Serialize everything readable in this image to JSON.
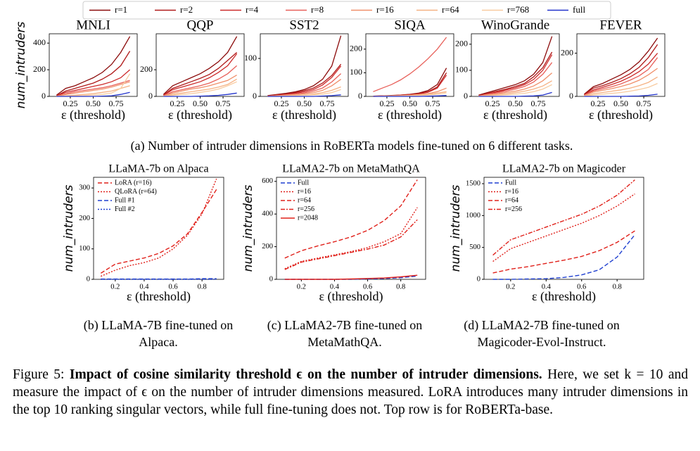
{
  "legend": {
    "entries": [
      {
        "name": "r=1",
        "color": "#8b0a0a"
      },
      {
        "name": "r=2",
        "color": "#b01a1a"
      },
      {
        "name": "r=4",
        "color": "#cc2a2a"
      },
      {
        "name": "r=8",
        "color": "#e8605a"
      },
      {
        "name": "r=16",
        "color": "#f08f6a"
      },
      {
        "name": "r=64",
        "color": "#f5b183"
      },
      {
        "name": "r=768",
        "color": "#f8cba0"
      },
      {
        "name": "full",
        "color": "#2233cc"
      }
    ]
  },
  "chart_data": [
    {
      "type": "line",
      "title": "MNLI",
      "ylabel": "num_intruders",
      "xlabel": "ε (threshold)",
      "x": [
        0.1,
        0.2,
        0.3,
        0.4,
        0.5,
        0.6,
        0.7,
        0.8,
        0.9
      ],
      "xlim": [
        0.02,
        0.98
      ],
      "xticks": [
        0.25,
        {
          "value": 0.5,
          "label": "0.50"
        },
        0.75
      ],
      "ylim": [
        0,
        470
      ],
      "yticks": [
        0,
        200,
        400
      ],
      "series": [
        {
          "values": [
            10,
            60,
            80,
            110,
            140,
            180,
            240,
            330,
            450
          ]
        },
        {
          "values": [
            5,
            40,
            60,
            80,
            100,
            130,
            170,
            230,
            340
          ]
        },
        {
          "values": [
            3,
            30,
            45,
            60,
            75,
            90,
            110,
            140,
            200
          ]
        },
        {
          "values": [
            2,
            20,
            35,
            45,
            55,
            65,
            80,
            100,
            120
          ]
        },
        {
          "values": [
            1,
            15,
            25,
            35,
            45,
            55,
            70,
            90,
            110
          ]
        },
        {
          "values": [
            0,
            5,
            10,
            15,
            20,
            30,
            40,
            60,
            80
          ]
        },
        {
          "values": [
            0,
            2,
            4,
            6,
            10,
            15,
            25,
            60,
            170
          ]
        },
        {
          "values": [
            0,
            0,
            0,
            0,
            0,
            2,
            5,
            15,
            30
          ]
        }
      ]
    },
    {
      "type": "line",
      "title": "QQP",
      "xlabel": "ε (threshold)",
      "x": [
        0.1,
        0.2,
        0.3,
        0.4,
        0.5,
        0.6,
        0.7,
        0.8,
        0.9
      ],
      "xlim": [
        0.02,
        0.98
      ],
      "xticks": [
        0.25,
        {
          "value": 0.5,
          "label": "0.50"
        },
        0.75
      ],
      "ylim": [
        0,
        470
      ],
      "yticks": [
        0,
        200
      ],
      "series": [
        {
          "values": [
            15,
            80,
            110,
            140,
            170,
            210,
            260,
            330,
            450
          ]
        },
        {
          "values": [
            10,
            60,
            85,
            110,
            135,
            165,
            210,
            270,
            330
          ]
        },
        {
          "values": [
            8,
            50,
            70,
            90,
            110,
            140,
            180,
            230,
            320
          ]
        },
        {
          "values": [
            5,
            35,
            50,
            65,
            80,
            100,
            130,
            170,
            230
          ]
        },
        {
          "values": [
            3,
            25,
            40,
            55,
            65,
            80,
            100,
            120,
            160
          ]
        },
        {
          "values": [
            2,
            15,
            25,
            35,
            45,
            55,
            70,
            90,
            130
          ]
        },
        {
          "values": [
            1,
            8,
            15,
            20,
            30,
            40,
            55,
            80,
            110
          ]
        },
        {
          "values": [
            0,
            0,
            0,
            0,
            2,
            4,
            8,
            15,
            25
          ]
        }
      ]
    },
    {
      "type": "line",
      "title": "SST2",
      "xlabel": "ε (threshold)",
      "x": [
        0.1,
        0.2,
        0.3,
        0.4,
        0.5,
        0.6,
        0.7,
        0.8,
        0.9
      ],
      "xlim": [
        0.02,
        0.98
      ],
      "xticks": [
        0.25,
        {
          "value": 0.5,
          "label": "0.50"
        },
        0.75
      ],
      "ylim": [
        0,
        165
      ],
      "yticks": [
        0,
        100
      ],
      "series": [
        {
          "values": [
            2,
            5,
            8,
            12,
            18,
            28,
            45,
            80,
            160
          ]
        },
        {
          "values": [
            1,
            4,
            6,
            10,
            15,
            22,
            35,
            55,
            85
          ]
        },
        {
          "values": [
            1,
            3,
            5,
            8,
            12,
            18,
            30,
            50,
            80
          ]
        },
        {
          "values": [
            0,
            2,
            4,
            6,
            9,
            14,
            22,
            38,
            60
          ]
        },
        {
          "values": [
            0,
            2,
            3,
            5,
            7,
            10,
            16,
            28,
            45
          ]
        },
        {
          "values": [
            0,
            1,
            2,
            3,
            4,
            6,
            10,
            16,
            25
          ]
        },
        {
          "values": [
            0,
            0,
            1,
            2,
            3,
            4,
            6,
            10,
            18
          ]
        },
        {
          "values": [
            0,
            0,
            0,
            0,
            0,
            0,
            1,
            2,
            4
          ]
        }
      ]
    },
    {
      "type": "line",
      "title": "SIQA",
      "xlabel": "ε (threshold)",
      "x": [
        0.1,
        0.2,
        0.3,
        0.4,
        0.5,
        0.6,
        0.7,
        0.8,
        0.9
      ],
      "xlim": [
        0.02,
        0.98
      ],
      "xticks": [
        0.25,
        {
          "value": 0.5,
          "label": "0.50"
        },
        0.75
      ],
      "ylim": [
        0,
        265
      ],
      "yticks": [
        0,
        100,
        200
      ],
      "series": [
        {
          "values": [
            1,
            2,
            4,
            6,
            9,
            14,
            25,
            50,
            120
          ]
        },
        {
          "values": [
            1,
            2,
            3,
            5,
            8,
            12,
            20,
            40,
            100
          ]
        },
        {
          "values": [
            0,
            2,
            3,
            5,
            7,
            10,
            18,
            35,
            90
          ]
        },
        {
          "values": [
            20,
            35,
            50,
            70,
            95,
            125,
            160,
            200,
            250
          ]
        },
        {
          "values": [
            0,
            1,
            2,
            3,
            5,
            8,
            12,
            20,
            35
          ]
        },
        {
          "values": [
            0,
            1,
            2,
            3,
            4,
            6,
            9,
            14,
            20
          ]
        },
        {
          "values": [
            0,
            0,
            1,
            2,
            3,
            4,
            6,
            9,
            15
          ]
        },
        {
          "values": [
            0,
            0,
            0,
            0,
            0,
            0,
            1,
            2,
            4
          ]
        }
      ]
    },
    {
      "type": "line",
      "title": "WinoGrande",
      "xlabel": "ε (threshold)",
      "x": [
        0.1,
        0.2,
        0.3,
        0.4,
        0.5,
        0.6,
        0.7,
        0.8,
        0.9
      ],
      "xlim": [
        0.02,
        0.98
      ],
      "xticks": [
        0.25,
        {
          "value": 0.5,
          "label": "0.50"
        },
        0.75
      ],
      "ylim": [
        0,
        240
      ],
      "yticks": [
        0,
        100,
        200
      ],
      "series": [
        {
          "values": [
            5,
            15,
            25,
            35,
            45,
            60,
            85,
            130,
            230
          ]
        },
        {
          "values": [
            3,
            12,
            20,
            28,
            38,
            50,
            75,
            110,
            170
          ]
        },
        {
          "values": [
            2,
            10,
            17,
            25,
            33,
            45,
            65,
            100,
            160
          ]
        },
        {
          "values": [
            2,
            8,
            14,
            20,
            28,
            38,
            55,
            85,
            130
          ]
        },
        {
          "values": [
            1,
            6,
            10,
            15,
            20,
            28,
            40,
            60,
            90
          ]
        },
        {
          "values": [
            1,
            4,
            7,
            10,
            14,
            20,
            28,
            40,
            60
          ]
        },
        {
          "values": [
            0,
            2,
            4,
            6,
            8,
            12,
            18,
            28,
            45
          ]
        },
        {
          "values": [
            0,
            0,
            0,
            0,
            0,
            1,
            2,
            5,
            15
          ]
        }
      ]
    },
    {
      "type": "line",
      "title": "FEVER",
      "xlabel": "ε (threshold)",
      "x": [
        0.1,
        0.2,
        0.3,
        0.4,
        0.5,
        0.6,
        0.7,
        0.8,
        0.9
      ],
      "xlim": [
        0.02,
        0.98
      ],
      "xticks": [
        0.25,
        {
          "value": 0.5,
          "label": "0.50"
        },
        0.75
      ],
      "ylim": [
        0,
        290
      ],
      "yticks": [
        0,
        200
      ],
      "series": [
        {
          "values": [
            10,
            45,
            60,
            80,
            100,
            125,
            160,
            210,
            270
          ]
        },
        {
          "values": [
            8,
            38,
            50,
            65,
            82,
            105,
            135,
            180,
            240
          ]
        },
        {
          "values": [
            6,
            30,
            42,
            55,
            70,
            90,
            115,
            150,
            200
          ]
        },
        {
          "values": [
            5,
            25,
            35,
            45,
            58,
            75,
            95,
            125,
            180
          ]
        },
        {
          "values": [
            4,
            20,
            28,
            36,
            46,
            58,
            75,
            100,
            130
          ]
        },
        {
          "values": [
            2,
            12,
            18,
            24,
            30,
            38,
            50,
            65,
            90
          ]
        },
        {
          "values": [
            1,
            6,
            10,
            14,
            18,
            24,
            32,
            42,
            60
          ]
        },
        {
          "values": [
            0,
            0,
            0,
            0,
            0,
            1,
            2,
            5,
            10
          ]
        }
      ]
    },
    {
      "type": "line",
      "title": "LLaMA-7b on Alpaca",
      "ylabel": "num_intruders",
      "xlabel": "ε (threshold)",
      "legend": "upper left",
      "x": [
        0.1,
        0.2,
        0.3,
        0.4,
        0.5,
        0.6,
        0.7,
        0.8,
        0.9
      ],
      "xlim": [
        0.05,
        0.95
      ],
      "xticks": [
        0.2,
        0.4,
        0.6,
        0.8
      ],
      "ylim": [
        0,
        335
      ],
      "yticks": [
        0,
        100,
        200,
        300
      ],
      "series": [
        {
          "name": "LoRA (r=16)",
          "color": "#e0201a",
          "style": "dashed",
          "values": [
            20,
            50,
            60,
            70,
            85,
            110,
            150,
            220,
            295
          ]
        },
        {
          "name": "QLoRA (r=64)",
          "color": "#e0201a",
          "style": "dotted",
          "values": [
            10,
            30,
            45,
            55,
            70,
            100,
            145,
            215,
            330
          ]
        },
        {
          "name": "Full #1",
          "color": "#1f3fd0",
          "style": "dashed",
          "values": [
            1,
            1,
            1,
            1,
            1,
            1,
            1,
            2,
            2
          ]
        },
        {
          "name": "Full #2",
          "color": "#1f3fd0",
          "style": "dotted",
          "values": [
            0,
            0,
            0,
            0,
            0,
            0,
            0,
            0,
            0
          ]
        }
      ]
    },
    {
      "type": "line",
      "title": "LLaMA2-7b on MetaMathQA",
      "ylabel": "num_intruders",
      "xlabel": "ε (threshold)",
      "legend": "upper left",
      "x": [
        0.1,
        0.2,
        0.3,
        0.4,
        0.5,
        0.6,
        0.7,
        0.8,
        0.9
      ],
      "xlim": [
        0.05,
        0.95
      ],
      "xticks": [
        0.2,
        0.4,
        0.6,
        0.8
      ],
      "ylim": [
        0,
        625
      ],
      "yticks": [
        0,
        200,
        400,
        600
      ],
      "series": [
        {
          "name": "Full",
          "color": "#1f3fd0",
          "style": "dashed",
          "values": [
            0,
            0,
            0,
            0,
            0,
            2,
            5,
            10,
            20
          ]
        },
        {
          "name": "r=16",
          "color": "#e0201a",
          "style": "dotted",
          "values": [
            65,
            110,
            130,
            150,
            170,
            195,
            230,
            280,
            440
          ]
        },
        {
          "name": "r=64",
          "color": "#e0201a",
          "style": "dashed",
          "values": [
            130,
            175,
            205,
            230,
            260,
            300,
            360,
            450,
            610
          ]
        },
        {
          "name": "r=256",
          "color": "#e0201a",
          "style": "dashdot",
          "values": [
            60,
            105,
            125,
            145,
            165,
            185,
            210,
            260,
            365
          ]
        },
        {
          "name": "r=2048",
          "color": "#e0201a",
          "style": "solid",
          "values": [
            0,
            0,
            0,
            0,
            2,
            5,
            8,
            15,
            25
          ]
        }
      ]
    },
    {
      "type": "line",
      "title": "LLaMA2-7b on Magicoder",
      "ylabel": "num_intruders",
      "xlabel": "ε (threshold)",
      "legend": "upper left",
      "x": [
        0.1,
        0.2,
        0.3,
        0.4,
        0.5,
        0.6,
        0.7,
        0.8,
        0.9
      ],
      "xlim": [
        0.05,
        0.95
      ],
      "xticks": [
        0.2,
        0.4,
        0.6,
        0.8
      ],
      "ylim": [
        0,
        1600
      ],
      "yticks": [
        0,
        500,
        1000,
        1500
      ],
      "series": [
        {
          "name": "Full",
          "color": "#1f3fd0",
          "style": "dashed",
          "values": [
            0,
            0,
            5,
            10,
            30,
            70,
            150,
            350,
            700
          ]
        },
        {
          "name": "r=16",
          "color": "#e0201a",
          "style": "dotted",
          "values": [
            280,
            480,
            580,
            680,
            780,
            880,
            1000,
            1150,
            1340
          ]
        },
        {
          "name": "r=64",
          "color": "#e0201a",
          "style": "dashed",
          "values": [
            100,
            160,
            200,
            250,
            300,
            360,
            450,
            580,
            760
          ]
        },
        {
          "name": "r=256",
          "color": "#e0201a",
          "style": "dashdot",
          "values": [
            380,
            620,
            720,
            820,
            920,
            1020,
            1150,
            1320,
            1560
          ]
        }
      ]
    }
  ],
  "subcaptions": [
    "(a) Number of intruder dimensions in RoBERTa models fine-tuned on 6 different tasks.",
    "(b) LLaMA-7B fine-tuned on Alpaca.",
    "(c) LLaMA2-7B fine-tuned on MetaMathQA.",
    "(d) LLaMA2-7B fine-tuned on Magicoder-Evol-Instruct."
  ],
  "figure_caption": {
    "label": "Figure 5: ",
    "bold": "Impact of cosine similarity threshold ϵ on the number of intruder dimensions.",
    "text": " Here, we set k = 10 and measure the impact of ϵ on the number of intruder dimensions measured. LoRA introduces many intruder dimensions in the top 10 ranking singular vectors, while full fine-tuning does not. Top row is for RoBERTa-base."
  }
}
